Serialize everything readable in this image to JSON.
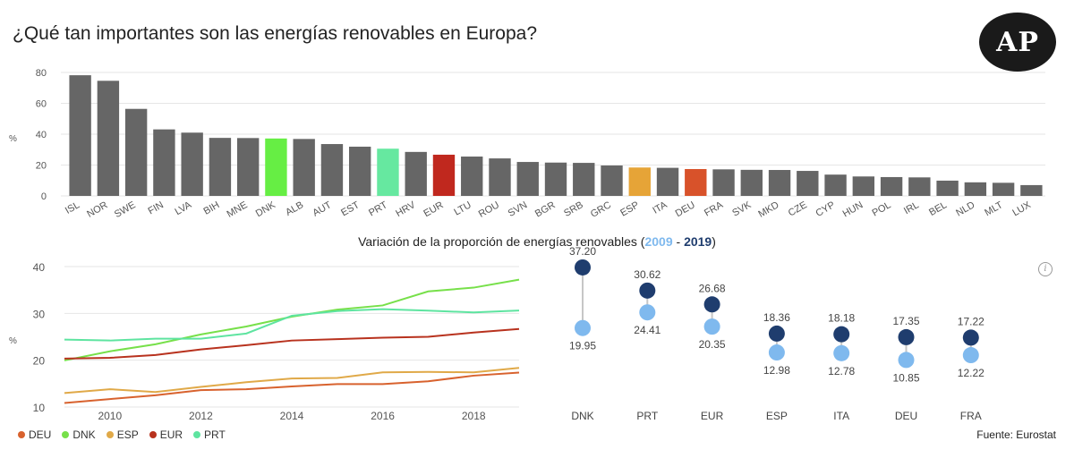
{
  "page": {
    "title": "¿Qué tan importantes son las energías renovables en Europa?",
    "logo_text": "AP",
    "subtitle_prefix": "Variación de la proporción de energías renovables (",
    "subtitle_year1": "2009",
    "subtitle_sep": " - ",
    "subtitle_year2": "2019",
    "subtitle_suffix": ")",
    "source": "Fuente: Eurostat",
    "info_icon": "i"
  },
  "chart_data": [
    {
      "type": "bar",
      "ylabel": "%",
      "ylim": [
        0,
        80
      ],
      "yticks": [
        0,
        20,
        40,
        60,
        80
      ],
      "default_color": "#666666",
      "categories": [
        "ISL",
        "NOR",
        "SWE",
        "FIN",
        "LVA",
        "BIH",
        "MNE",
        "DNK",
        "ALB",
        "AUT",
        "EST",
        "PRT",
        "HRV",
        "EUR",
        "LTU",
        "ROU",
        "SVN",
        "BGR",
        "SRB",
        "GRC",
        "ESP",
        "ITA",
        "DEU",
        "FRA",
        "SVK",
        "MKD",
        "CZE",
        "CYP",
        "HUN",
        "POL",
        "IRL",
        "BEL",
        "NLD",
        "MLT",
        "LUX"
      ],
      "values": [
        78.2,
        74.6,
        56.4,
        43.1,
        41.0,
        37.6,
        37.5,
        37.2,
        36.9,
        33.6,
        31.9,
        30.6,
        28.5,
        26.7,
        25.5,
        24.3,
        22.0,
        21.6,
        21.4,
        19.7,
        18.4,
        18.2,
        17.4,
        17.2,
        16.9,
        16.8,
        16.2,
        13.8,
        12.6,
        12.2,
        12.0,
        9.9,
        8.8,
        8.5,
        7.0
      ],
      "highlight_colors": {
        "DNK": "#66ee44",
        "PRT": "#66e8a0",
        "EUR": "#c0281e",
        "ESP": "#e6a437",
        "DEU": "#d8522a"
      }
    },
    {
      "type": "line",
      "ylabel": "%",
      "ylim": [
        10,
        40
      ],
      "yticks": [
        10,
        20,
        30,
        40
      ],
      "xticks": [
        2010,
        2012,
        2014,
        2016,
        2018
      ],
      "x": [
        2009,
        2010,
        2011,
        2012,
        2013,
        2014,
        2015,
        2016,
        2017,
        2018,
        2019
      ],
      "series": [
        {
          "name": "DEU",
          "color": "#d8622e",
          "values": [
            10.85,
            11.7,
            12.5,
            13.6,
            13.8,
            14.4,
            14.9,
            14.9,
            15.5,
            16.7,
            17.35
          ]
        },
        {
          "name": "DNK",
          "color": "#77e04a",
          "values": [
            19.95,
            21.9,
            23.4,
            25.5,
            27.2,
            29.3,
            30.8,
            31.7,
            34.7,
            35.5,
            37.2
          ]
        },
        {
          "name": "ESP",
          "color": "#e0a948",
          "values": [
            12.98,
            13.8,
            13.2,
            14.3,
            15.3,
            16.1,
            16.2,
            17.4,
            17.5,
            17.4,
            18.36
          ]
        },
        {
          "name": "EUR",
          "color": "#b8321e",
          "values": [
            20.35,
            20.5,
            21.1,
            22.3,
            23.2,
            24.2,
            24.5,
            24.8,
            25.0,
            25.9,
            26.68
          ]
        },
        {
          "name": "PRT",
          "color": "#5ee4a0",
          "values": [
            24.41,
            24.2,
            24.6,
            24.6,
            25.7,
            29.5,
            30.5,
            30.9,
            30.6,
            30.2,
            30.62
          ]
        }
      ]
    },
    {
      "type": "dumbbell",
      "color_2009": "#7fb9ee",
      "color_2019": "#1f3d6e",
      "ylim": [
        0,
        40
      ],
      "categories": [
        "DNK",
        "PRT",
        "EUR",
        "ESP",
        "ITA",
        "DEU",
        "FRA"
      ],
      "values_2009": [
        19.95,
        24.41,
        20.35,
        12.98,
        12.78,
        10.85,
        12.22
      ],
      "values_2019": [
        37.2,
        30.62,
        26.68,
        18.36,
        18.18,
        17.35,
        17.22
      ],
      "labels_2009": [
        "19.95",
        "24.41",
        "20.35",
        "12.98",
        "12.78",
        "10.85",
        "12.22"
      ],
      "labels_2019": [
        "37.20",
        "30.62",
        "26.68",
        "18.36",
        "18.18",
        "17.35",
        "17.22"
      ]
    }
  ]
}
